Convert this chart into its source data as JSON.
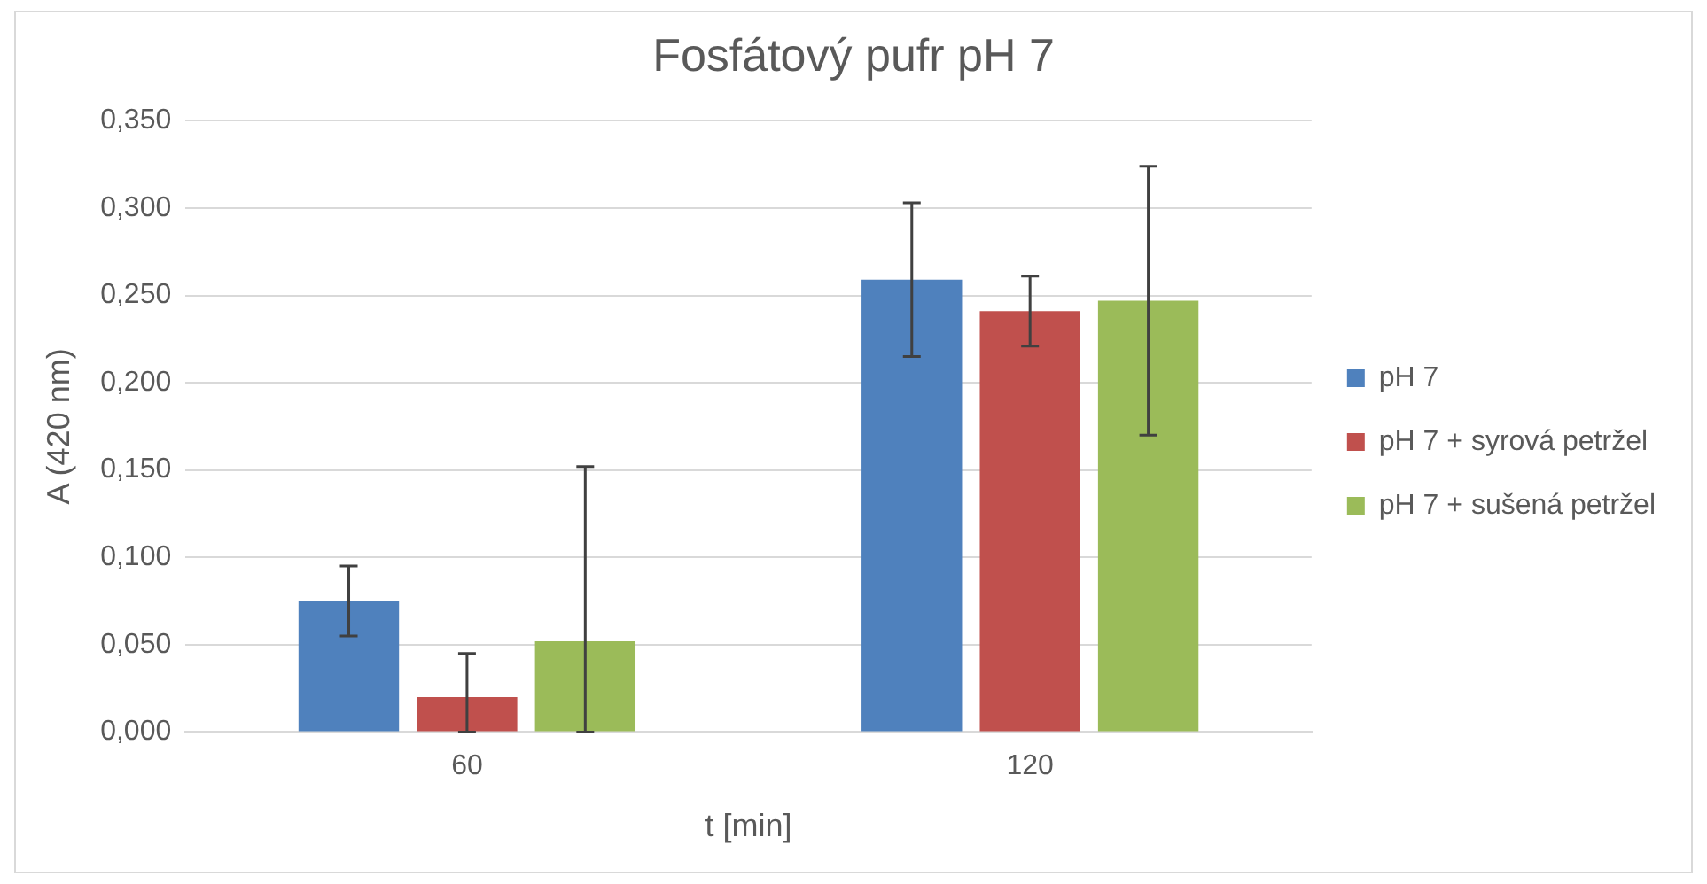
{
  "chart_data": {
    "type": "bar",
    "title": "Fosfátový pufr pH 7",
    "xlabel": "t [min]",
    "ylabel": "A (420 nm)",
    "categories": [
      "60",
      "120"
    ],
    "series": [
      {
        "name": "pH 7",
        "color": "#4f81bd",
        "values": [
          0.075,
          0.259
        ],
        "errors": [
          0.02,
          0.044
        ]
      },
      {
        "name": "pH 7 + syrová petržel",
        "color": "#c0504d",
        "values": [
          0.02,
          0.241
        ],
        "errors": [
          [
            0,
            0.045
          ],
          0.02
        ]
      },
      {
        "name": "pH 7 + sušená petržel",
        "color": "#9bbb59",
        "values": [
          0.052,
          0.247
        ],
        "errors": [
          [
            0,
            0.152
          ],
          0.077
        ]
      }
    ],
    "ylim": [
      0,
      0.35
    ],
    "yticks": [
      {
        "value": 0,
        "label": "0,000"
      },
      {
        "value": 0.05,
        "label": "0,050"
      },
      {
        "value": 0.1,
        "label": "0,100"
      },
      {
        "value": 0.15,
        "label": "0,150"
      },
      {
        "value": 0.2,
        "label": "0,200"
      },
      {
        "value": 0.25,
        "label": "0,250"
      },
      {
        "value": 0.3,
        "label": "0,300"
      },
      {
        "value": 0.35,
        "label": "0,350"
      }
    ],
    "grid": "y",
    "legend": "right"
  }
}
